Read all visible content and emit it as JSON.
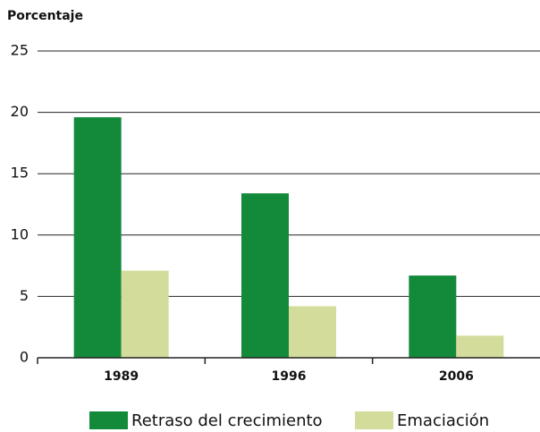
{
  "chart_data": {
    "type": "bar",
    "y_label": "Porcentaje",
    "categories": [
      "1989",
      "1996",
      "2006"
    ],
    "series": [
      {
        "name": "Retraso del crecimiento",
        "color": "#138a3a",
        "values": [
          19.6,
          13.4,
          6.7
        ]
      },
      {
        "name": "Emaciación",
        "color": "#d4dc9c",
        "values": [
          7.1,
          4.2,
          1.8
        ]
      }
    ],
    "ylim": [
      0,
      25
    ],
    "yticks": [
      0,
      5,
      10,
      15,
      20,
      25
    ],
    "grid": true,
    "legend": "bottom"
  }
}
